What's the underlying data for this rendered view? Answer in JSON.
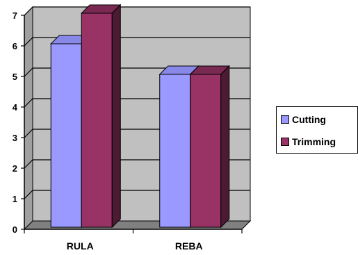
{
  "chart_data": {
    "type": "bar",
    "three_d": true,
    "categories": [
      "RULA",
      "REBA"
    ],
    "series": [
      {
        "name": "Cutting",
        "values": [
          6,
          5
        ],
        "color": "#9999ff",
        "side_color": "#6a6ad0",
        "top_color": "#8888e8"
      },
      {
        "name": "Trimming",
        "values": [
          7,
          5
        ],
        "color": "#993366",
        "side_color": "#4d1a33",
        "top_color": "#7a2952"
      }
    ],
    "y_ticks": [
      "0",
      "1",
      "2",
      "3",
      "4",
      "5",
      "6",
      "7"
    ],
    "ylim": [
      0,
      7
    ],
    "grid": true,
    "wall_color": "#c0c0c0",
    "floor_color": "#808080",
    "legend_position": "right",
    "title": "",
    "xlabel": "",
    "ylabel": ""
  }
}
